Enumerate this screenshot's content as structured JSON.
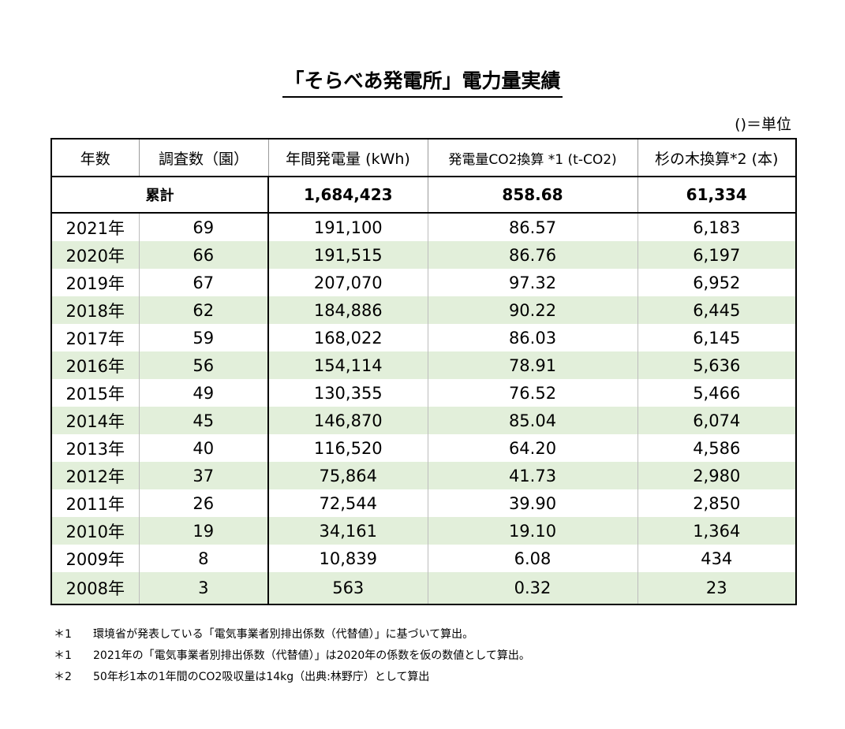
{
  "title": "「そらべあ発電所」電力量実績",
  "unit_note": "()＝単位",
  "headers": [
    "年数",
    "調査数（園）",
    "年間発電量 (kWh)",
    "発電量CO2換算 *1 (t-CO2)",
    "杉の木換算*2 (本)"
  ],
  "total": {
    "label": "累計",
    "kwh": "1,684,423",
    "co2": "858.68",
    "trees": "61,334"
  },
  "rows": [
    {
      "year": "2021年",
      "count": "69",
      "kwh": "191,100",
      "co2": "86.57",
      "trees": "6,183"
    },
    {
      "year": "2020年",
      "count": "66",
      "kwh": "191,515",
      "co2": "86.76",
      "trees": "6,197"
    },
    {
      "year": "2019年",
      "count": "67",
      "kwh": "207,070",
      "co2": "97.32",
      "trees": "6,952"
    },
    {
      "year": "2018年",
      "count": "62",
      "kwh": "184,886",
      "co2": "90.22",
      "trees": "6,445"
    },
    {
      "year": "2017年",
      "count": "59",
      "kwh": "168,022",
      "co2": "86.03",
      "trees": "6,145"
    },
    {
      "year": "2016年",
      "count": "56",
      "kwh": "154,114",
      "co2": "78.91",
      "trees": "5,636"
    },
    {
      "year": "2015年",
      "count": "49",
      "kwh": "130,355",
      "co2": "76.52",
      "trees": "5,466"
    },
    {
      "year": "2014年",
      "count": "45",
      "kwh": "146,870",
      "co2": "85.04",
      "trees": "6,074"
    },
    {
      "year": "2013年",
      "count": "40",
      "kwh": "116,520",
      "co2": "64.20",
      "trees": "4,586"
    },
    {
      "year": "2012年",
      "count": "37",
      "kwh": "75,864",
      "co2": "41.73",
      "trees": "2,980"
    },
    {
      "year": "2011年",
      "count": "26",
      "kwh": "72,544",
      "co2": "39.90",
      "trees": "2,850"
    },
    {
      "year": "2010年",
      "count": "19",
      "kwh": "34,161",
      "co2": "19.10",
      "trees": "1,364"
    },
    {
      "year": "2009年",
      "count": "8",
      "kwh": "10,839",
      "co2": "6.08",
      "trees": "434"
    },
    {
      "year": "2008年",
      "count": "3",
      "kwh": "563",
      "co2": "0.32",
      "trees": "23"
    }
  ],
  "notes": [
    {
      "mark": "＊1",
      "text": "環境省が発表している「電気事業者別排出係数（代替値）」に基づいて算出。"
    },
    {
      "mark": "＊1",
      "text": "2021年の「電気事業者別排出係数（代替値）」は2020年の係数を仮の数値として算出。"
    },
    {
      "mark": "＊2",
      "text": "50年杉1本の1年間のCO2吸収量は14kg（出典:林野庁）として算出"
    }
  ]
}
